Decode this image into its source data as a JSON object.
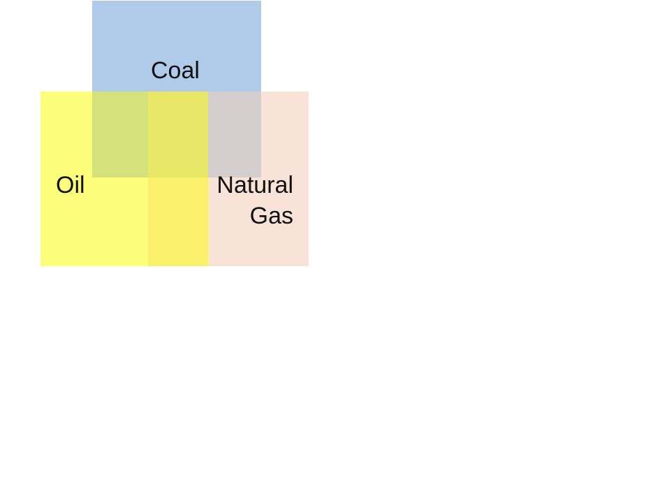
{
  "diagram": {
    "labels": {
      "coal": "Coal",
      "oil": "Oil",
      "natural_gas": "Natural Gas"
    },
    "colors": {
      "coal": "#afcbe9",
      "oil": "#fdfd7c",
      "natural_gas": "#f9e2d7",
      "coal_oil_overlap": "#d5e27b",
      "coal_oil_gas_overlap": "#e7e667",
      "coal_gas_overlap": "#d4cece",
      "oil_gas_overlap": "#fbf06b",
      "background": "#ffffff"
    }
  }
}
